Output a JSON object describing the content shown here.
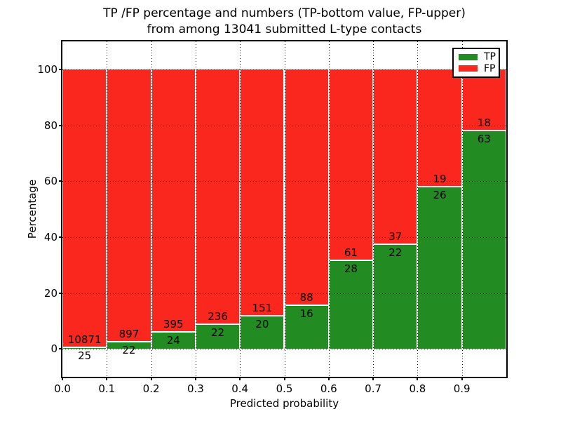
{
  "chart_data": {
    "type": "bar",
    "stacked": true,
    "percent_normalized": true,
    "title_line1": "TP /FP percentage and numbers (TP-bottom value, FP-upper)",
    "title_line2": "from among 13041 submitted L-type contacts",
    "total_contacts": 13041,
    "xlabel": "Predicted probability",
    "ylabel": "Percentage",
    "xlim": [
      0.0,
      1.0
    ],
    "ylim": [
      -10,
      110
    ],
    "x_tick_labels": [
      "0.0",
      "0.1",
      "0.2",
      "0.3",
      "0.4",
      "0.5",
      "0.6",
      "0.7",
      "0.8",
      "0.9"
    ],
    "y_tick_values": [
      0,
      20,
      40,
      60,
      80,
      100
    ],
    "grid": "dotted",
    "colors": {
      "tp": "#228b22",
      "fp": "#f9271d",
      "bar_edge": "#ffffff",
      "text": "#000000"
    },
    "legend": {
      "position": "upper-right",
      "entries": [
        {
          "label": "TP",
          "color": "#228b22"
        },
        {
          "label": "FP",
          "color": "#f9271d"
        }
      ]
    },
    "bins": [
      {
        "range": "0.0-0.1",
        "x0": 0.0,
        "tp": 25,
        "fp": 10871,
        "tp_pct": 0.23
      },
      {
        "range": "0.1-0.2",
        "x0": 0.1,
        "tp": 22,
        "fp": 897,
        "tp_pct": 2.39
      },
      {
        "range": "0.2-0.3",
        "x0": 0.2,
        "tp": 24,
        "fp": 395,
        "tp_pct": 5.73
      },
      {
        "range": "0.3-0.4",
        "x0": 0.3,
        "tp": 22,
        "fp": 236,
        "tp_pct": 8.53
      },
      {
        "range": "0.4-0.5",
        "x0": 0.4,
        "tp": 20,
        "fp": 151,
        "tp_pct": 11.7
      },
      {
        "range": "0.5-0.6",
        "x0": 0.5,
        "tp": 16,
        "fp": 88,
        "tp_pct": 15.38
      },
      {
        "range": "0.6-0.7",
        "x0": 0.6,
        "tp": 28,
        "fp": 61,
        "tp_pct": 31.46
      },
      {
        "range": "0.7-0.8",
        "x0": 0.7,
        "tp": 22,
        "fp": 37,
        "tp_pct": 37.29
      },
      {
        "range": "0.8-0.9",
        "x0": 0.8,
        "tp": 26,
        "fp": 19,
        "tp_pct": 57.78
      },
      {
        "range": "0.9-1.0",
        "x0": 0.9,
        "tp": 63,
        "fp": 18,
        "tp_pct": 77.78
      }
    ]
  }
}
